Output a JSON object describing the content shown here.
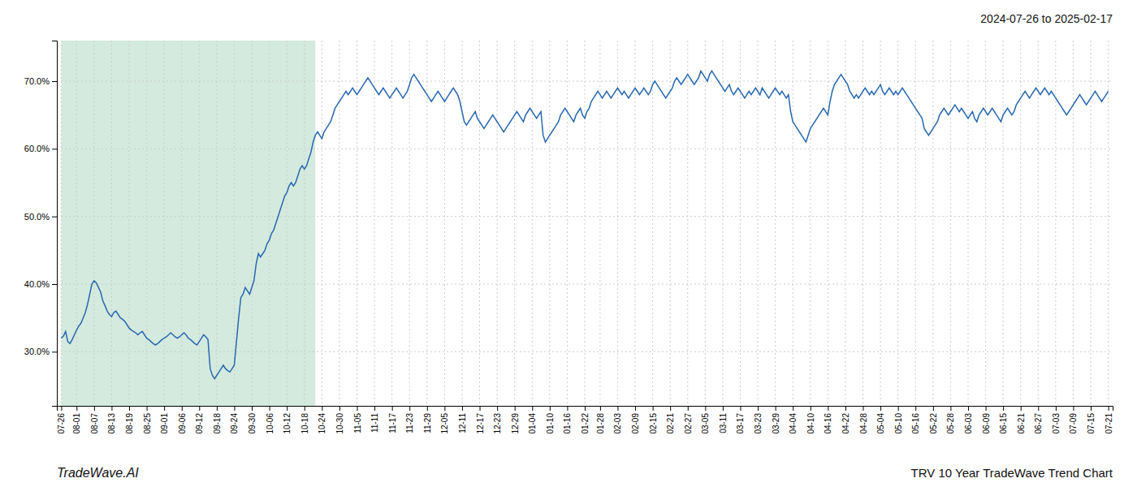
{
  "chart_data": {
    "type": "line",
    "title": "TRV 10 Year TradeWave Trend Chart",
    "subtitle": "2024-07-26 to 2025-02-17",
    "annotations": [
      {
        "text": "TradeWave.AI"
      }
    ],
    "color": "#2868b0",
    "grid": true,
    "ylim": [
      22,
      76
    ],
    "yticks": [
      {
        "value": 30.0,
        "label": "30.0%"
      },
      {
        "value": 40.0,
        "label": "40.0%"
      },
      {
        "value": 50.0,
        "label": "50.0%"
      },
      {
        "value": 60.0,
        "label": "60.0%"
      },
      {
        "value": 70.0,
        "label": "70.0%"
      }
    ],
    "shaded_region": {
      "x": [
        0,
        116
      ],
      "color": "#d4eade"
    },
    "categories": [
      "07-26",
      null,
      null,
      null,
      null,
      null,
      null,
      "08-01",
      null,
      null,
      null,
      null,
      null,
      null,
      null,
      "08-07",
      null,
      null,
      null,
      null,
      null,
      null,
      null,
      "08-13",
      null,
      null,
      null,
      null,
      null,
      null,
      null,
      "08-19",
      null,
      null,
      null,
      null,
      null,
      null,
      null,
      "08-25",
      null,
      null,
      null,
      null,
      null,
      null,
      null,
      "09-01",
      null,
      null,
      null,
      null,
      null,
      null,
      null,
      "09-06",
      null,
      null,
      null,
      null,
      null,
      null,
      null,
      "09-12",
      null,
      null,
      null,
      null,
      null,
      null,
      null,
      "09-18",
      null,
      null,
      null,
      null,
      null,
      null,
      null,
      "09-24",
      null,
      null,
      null,
      null,
      null,
      null,
      null,
      "09-30",
      null,
      null,
      null,
      null,
      null,
      null,
      null,
      "10-06",
      null,
      null,
      null,
      null,
      null,
      null,
      null,
      "10-12",
      null,
      null,
      null,
      null,
      null,
      null,
      null,
      "10-18",
      null,
      null,
      null,
      null,
      null,
      null,
      null,
      "10-24",
      null,
      null,
      null,
      null,
      null,
      null,
      null,
      "10-30",
      null,
      null,
      null,
      null,
      null,
      null,
      null,
      "11-05",
      null,
      null,
      null,
      null,
      null,
      null,
      null,
      "11-11",
      null,
      null,
      null,
      null,
      null,
      null,
      null,
      "11-17",
      null,
      null,
      null,
      null,
      null,
      null,
      null,
      "11-23",
      null,
      null,
      null,
      null,
      null,
      null,
      null,
      "11-29",
      null,
      null,
      null,
      null,
      null,
      null,
      null,
      "12-05",
      null,
      null,
      null,
      null,
      null,
      null,
      null,
      "12-11",
      null,
      null,
      null,
      null,
      null,
      null,
      null,
      "12-17",
      null,
      null,
      null,
      null,
      null,
      null,
      null,
      "12-23",
      null,
      null,
      null,
      null,
      null,
      null,
      null,
      "12-29",
      null,
      null,
      null,
      null,
      null,
      null,
      null,
      "01-04",
      null,
      null,
      null,
      null,
      null,
      null,
      null,
      "01-10",
      null,
      null,
      null,
      null,
      null,
      null,
      null,
      "01-16",
      null,
      null,
      null,
      null,
      null,
      null,
      null,
      "01-22",
      null,
      null,
      null,
      null,
      null,
      null,
      "01-28",
      null,
      null,
      null,
      null,
      null,
      null,
      null,
      "02-03",
      null,
      null,
      null,
      null,
      null,
      null,
      null,
      "02-09",
      null,
      null,
      null,
      null,
      null,
      null,
      null,
      "02-15",
      null,
      null,
      null,
      null,
      null,
      null,
      null,
      "02-21",
      null,
      null,
      null,
      null,
      null,
      null,
      null,
      "02-27",
      null,
      null,
      null,
      null,
      null,
      null,
      null,
      "03-05",
      null,
      null,
      null,
      null,
      null,
      null,
      null,
      "03-11",
      null,
      null,
      null,
      null,
      null,
      null,
      null,
      "03-17",
      null,
      null,
      null,
      null,
      null,
      null,
      null,
      "03-23",
      null,
      null,
      null,
      null,
      null,
      null,
      null,
      "03-29",
      null,
      null,
      null,
      null,
      null,
      null,
      null,
      "04-04",
      null,
      null,
      null,
      null,
      null,
      null,
      null,
      "04-10",
      null,
      null,
      null,
      null,
      null,
      null,
      null,
      "04-16",
      null,
      null,
      null,
      null,
      null,
      null,
      null,
      "04-22",
      null,
      null,
      null,
      null,
      null,
      null,
      null,
      "04-28",
      null,
      null,
      null,
      null,
      null,
      null,
      null,
      "05-04",
      null,
      null,
      null,
      null,
      null,
      null,
      null,
      "05-10",
      null,
      null,
      null,
      null,
      null,
      null,
      null,
      "05-16",
      null,
      null,
      null,
      null,
      null,
      null,
      null,
      "05-22",
      null,
      null,
      null,
      null,
      null,
      null,
      null,
      "05-28",
      null,
      null,
      null,
      null,
      null,
      null,
      null,
      "06-03",
      null,
      null,
      null,
      null,
      null,
      null,
      null,
      "06-09",
      null,
      null,
      null,
      null,
      null,
      null,
      null,
      "06-15",
      null,
      null,
      null,
      null,
      null,
      null,
      null,
      "06-21",
      null,
      null,
      null,
      null,
      null,
      null,
      null,
      "06-27",
      null,
      null,
      null,
      null,
      null,
      null,
      null,
      "07-03",
      null,
      null,
      null,
      null,
      null,
      null,
      null,
      "07-09",
      null,
      null,
      null,
      null,
      null,
      null,
      null,
      "07-15",
      null,
      null,
      null,
      null,
      null,
      null,
      null,
      "07-21"
    ],
    "values": [
      32.0,
      32.3,
      33.0,
      31.5,
      31.2,
      31.8,
      32.5,
      33.2,
      33.8,
      34.2,
      35.0,
      35.8,
      37.0,
      38.5,
      40.0,
      40.5,
      40.2,
      39.5,
      38.8,
      37.5,
      36.8,
      36.0,
      35.5,
      35.2,
      35.8,
      36.0,
      35.5,
      35.0,
      34.8,
      34.5,
      34.0,
      33.5,
      33.2,
      33.0,
      32.8,
      32.5,
      32.8,
      33.0,
      32.5,
      32.0,
      31.8,
      31.5,
      31.2,
      31.0,
      31.2,
      31.5,
      31.8,
      32.0,
      32.2,
      32.5,
      32.8,
      32.5,
      32.2,
      32.0,
      32.2,
      32.5,
      32.8,
      32.5,
      32.0,
      31.8,
      31.5,
      31.2,
      31.0,
      31.5,
      32.0,
      32.5,
      32.2,
      31.8,
      27.5,
      26.5,
      26.0,
      26.5,
      27.0,
      27.5,
      28.0,
      27.5,
      27.2,
      27.0,
      27.5,
      28.0,
      31.5,
      35.0,
      38.0,
      38.5,
      39.5,
      39.0,
      38.5,
      39.5,
      40.5,
      43.0,
      44.5,
      44.0,
      44.5,
      45.0,
      46.0,
      46.5,
      47.5,
      48.0,
      49.0,
      50.0,
      51.0,
      52.0,
      53.0,
      53.5,
      54.5,
      55.0,
      54.5,
      55.0,
      56.0,
      57.0,
      57.5,
      57.0,
      57.5,
      58.5,
      59.5,
      61.0,
      62.0,
      62.5,
      62.0,
      61.5,
      62.5,
      63.0,
      63.5,
      64.0,
      65.0,
      66.0,
      66.5,
      67.0,
      67.5,
      68.0,
      68.5,
      68.0,
      68.5,
      69.0,
      68.5,
      68.0,
      68.5,
      69.0,
      69.5,
      70.0,
      70.5,
      70.0,
      69.5,
      69.0,
      68.5,
      68.0,
      68.5,
      69.0,
      68.5,
      68.0,
      67.5,
      68.0,
      68.5,
      69.0,
      68.5,
      68.0,
      67.5,
      68.0,
      68.5,
      69.5,
      70.5,
      71.0,
      70.5,
      70.0,
      69.5,
      69.0,
      68.5,
      68.0,
      67.5,
      67.0,
      67.5,
      68.0,
      68.5,
      68.0,
      67.5,
      67.0,
      67.5,
      68.0,
      68.5,
      69.0,
      68.5,
      68.0,
      67.0,
      65.5,
      64.0,
      63.5,
      64.0,
      64.5,
      65.0,
      65.5,
      64.5,
      64.0,
      63.5,
      63.0,
      63.5,
      64.0,
      64.5,
      65.0,
      64.5,
      64.0,
      63.5,
      63.0,
      62.5,
      63.0,
      63.5,
      64.0,
      64.5,
      65.0,
      65.5,
      65.0,
      64.5,
      64.0,
      65.0,
      65.5,
      66.0,
      65.5,
      65.0,
      64.5,
      65.0,
      65.5,
      62.0,
      61.0,
      61.5,
      62.0,
      62.5,
      63.0,
      63.5,
      64.0,
      65.0,
      65.5,
      66.0,
      65.5,
      65.0,
      64.5,
      64.0,
      65.0,
      65.5,
      66.0,
      65.0,
      64.5,
      65.5,
      66.0,
      67.0,
      67.5,
      68.0,
      68.5,
      68.0,
      67.5,
      68.0,
      68.5,
      68.0,
      67.5,
      68.0,
      68.5,
      69.0,
      68.5,
      68.0,
      68.5,
      68.0,
      67.5,
      68.0,
      68.5,
      69.0,
      68.5,
      68.0,
      68.5,
      69.0,
      68.5,
      68.0,
      68.5,
      69.5,
      70.0,
      69.5,
      69.0,
      68.5,
      68.0,
      67.5,
      68.0,
      68.5,
      69.0,
      70.0,
      70.5,
      70.0,
      69.5,
      70.0,
      70.5,
      71.0,
      70.5,
      70.0,
      69.5,
      70.0,
      70.5,
      71.5,
      71.0,
      70.5,
      70.0,
      71.0,
      71.5,
      71.0,
      70.5,
      70.0,
      69.5,
      69.0,
      68.5,
      69.0,
      69.5,
      68.5,
      68.0,
      68.5,
      69.0,
      68.5,
      68.0,
      67.5,
      68.0,
      68.5,
      68.0,
      68.5,
      69.0,
      68.5,
      68.0,
      69.0,
      68.5,
      68.0,
      67.5,
      68.0,
      68.5,
      69.0,
      68.5,
      68.0,
      68.5,
      68.0,
      67.5,
      68.0,
      65.5,
      64.0,
      63.5,
      63.0,
      62.5,
      62.0,
      61.5,
      61.0,
      62.0,
      63.0,
      63.5,
      64.0,
      64.5,
      65.0,
      65.5,
      66.0,
      65.5,
      65.0,
      67.0,
      68.5,
      69.5,
      70.0,
      70.5,
      71.0,
      70.5,
      70.0,
      69.5,
      68.5,
      68.0,
      67.5,
      68.0,
      67.5,
      68.0,
      68.5,
      69.0,
      68.5,
      68.0,
      68.5,
      68.0,
      68.5,
      69.0,
      69.5,
      68.5,
      68.0,
      68.5,
      69.0,
      68.5,
      68.0,
      68.5,
      68.0,
      68.5,
      69.0,
      68.5,
      68.0,
      67.5,
      67.0,
      66.5,
      66.0,
      65.5,
      65.0,
      64.5,
      63.0,
      62.5,
      62.0,
      62.5,
      63.0,
      63.5,
      64.0,
      65.0,
      65.5,
      66.0,
      65.5,
      65.0,
      65.5,
      66.0,
      66.5,
      66.0,
      65.5,
      66.0,
      65.5,
      65.0,
      64.5,
      65.0,
      65.5,
      64.5,
      64.0,
      65.0,
      65.5,
      66.0,
      65.5,
      65.0,
      65.5,
      66.0,
      65.5,
      65.0,
      64.5,
      64.0,
      65.0,
      65.5,
      66.0,
      65.5,
      65.0,
      65.5,
      66.5,
      67.0,
      67.5,
      68.0,
      68.5,
      68.0,
      67.5,
      68.0,
      68.5,
      69.0,
      68.5,
      68.0,
      68.5,
      69.0,
      68.5,
      68.0,
      68.5,
      68.0,
      67.5,
      67.0,
      66.5,
      66.0,
      65.5,
      65.0,
      65.5,
      66.0,
      66.5,
      67.0,
      67.5,
      68.0,
      67.5,
      67.0,
      66.5,
      67.0,
      67.5,
      68.0,
      68.5,
      68.0,
      67.5,
      67.0,
      67.5,
      68.0,
      68.5
    ]
  }
}
